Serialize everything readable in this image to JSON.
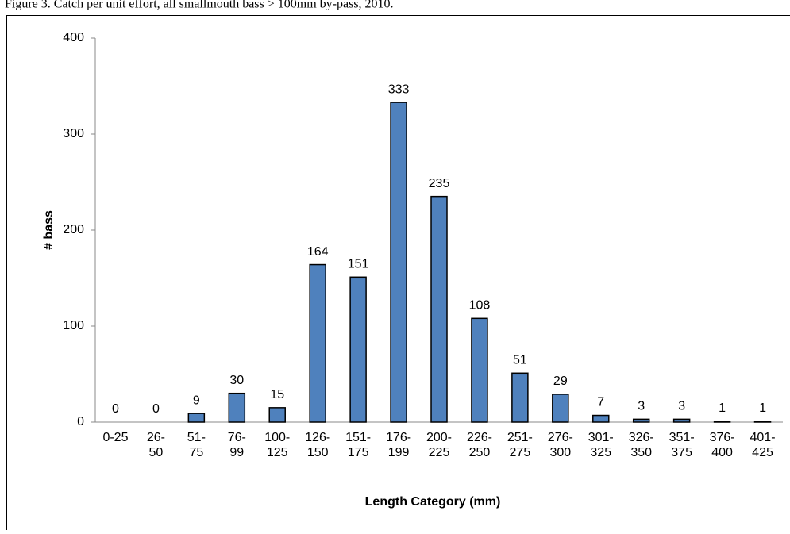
{
  "chart_data": {
    "type": "bar",
    "title": "Figure 3. Catch per unit effort, all smallmouth bass > 100mm by-pass, 2010.",
    "x_label": "Length Category (mm)",
    "y_label": "# bass",
    "categories": [
      "0-25",
      "26-\n50",
      "51-\n75",
      "76-\n99",
      "100-\n125",
      "126-\n150",
      "151-\n175",
      "176-\n199",
      "200-\n225",
      "226-\n250",
      "251-\n275",
      "276-\n300",
      "301-\n325",
      "326-\n350",
      "351-\n375",
      "376-\n400",
      "401-\n425"
    ],
    "values": [
      0,
      0,
      9,
      30,
      15,
      164,
      151,
      333,
      235,
      108,
      51,
      29,
      7,
      3,
      3,
      1,
      1
    ],
    "color": "#4f81bd",
    "ylim": [
      0,
      400
    ],
    "yticks": [
      0,
      100,
      200,
      300,
      400
    ],
    "grid": false
  }
}
